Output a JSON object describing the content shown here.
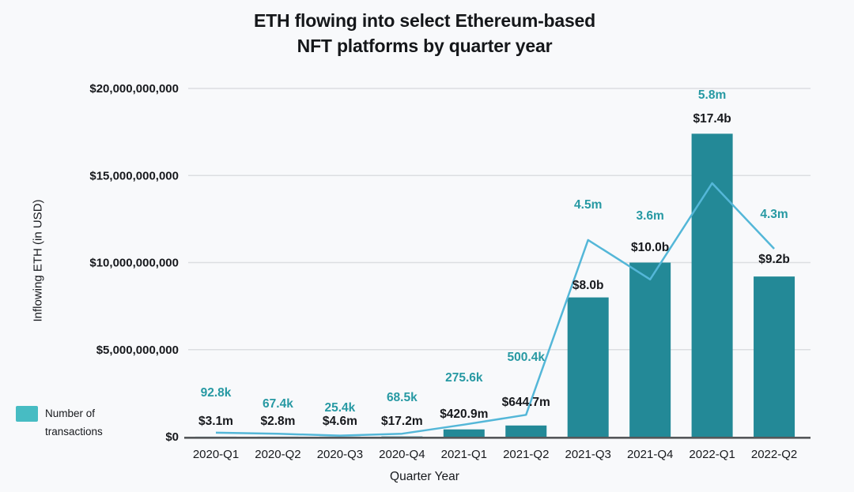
{
  "title": {
    "lines": [
      "ETH flowing into select Ethereum-based",
      "NFT platforms by quarter year"
    ]
  },
  "legend": {
    "lines": [
      "Number of",
      "transactions"
    ],
    "label": "Number of transactions",
    "swatch_color": "#47bcc3"
  },
  "chart_data": {
    "type": "bar",
    "title": "ETH flowing into select Ethereum-based NFT platforms by quarter year",
    "xlabel": "Quarter Year",
    "ylabel": "Inflowing ETH (in USD)",
    "ylim": [
      0,
      20000000000
    ],
    "y_ticks": [
      "$0",
      "$5,000,000,000",
      "$10,000,000,000",
      "$15,000,000,000",
      "$20,000,000,000"
    ],
    "grid": "horizontal",
    "legend_position": "bottom-left",
    "background_color": "#f8f9fb",
    "gridline_color": "#dcdee1",
    "axis_line_color": "#54575a",
    "categories": [
      "2020-Q1",
      "2020-Q2",
      "2020-Q3",
      "2020-Q4",
      "2021-Q1",
      "2021-Q2",
      "2021-Q3",
      "2021-Q4",
      "2022-Q1",
      "2022-Q2"
    ],
    "series": [
      {
        "name": "Inflowing ETH (in USD)",
        "kind": "bar",
        "color": "#238997",
        "label_color": "#17191d",
        "values": [
          3100000,
          2800000,
          4600000,
          17200000,
          420900000,
          644700000,
          8000000000,
          10000000000,
          17400000000,
          9200000000
        ],
        "labels": [
          "$3.1m",
          "$2.8m",
          "$4.6m",
          "$17.2m",
          "$420.9m",
          "$644.7m",
          "$8.0b",
          "$10.0b",
          "$17.4b",
          "$9.2b"
        ]
      },
      {
        "name": "Number of transactions",
        "kind": "line",
        "color": "#54b7d8",
        "label_color": "#2799a3",
        "values": [
          92800,
          67400,
          25400,
          68500,
          275600,
          500400,
          4500000,
          3600000,
          5800000,
          4300000
        ],
        "labels": [
          "92.8k",
          "67.4k",
          "25.4k",
          "68.5k",
          "275.6k",
          "500.4k",
          "4.5m",
          "3.6m",
          "5.8m",
          "4.3m"
        ]
      }
    ]
  }
}
